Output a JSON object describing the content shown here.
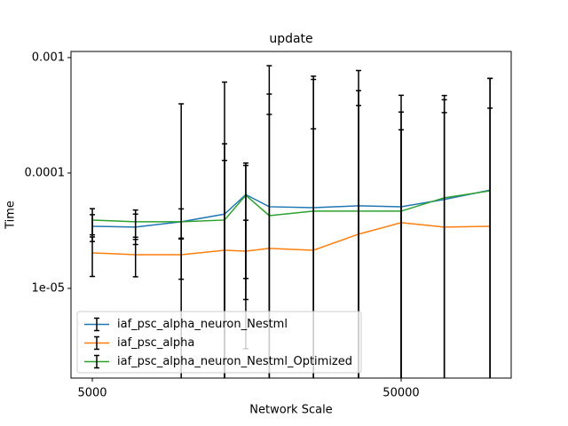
{
  "chart_data": {
    "type": "errorbar-line",
    "title": "update",
    "xlabel": "Network Scale",
    "ylabel": "Time",
    "xscale": "log",
    "yscale": "log",
    "x": [
      5000,
      6900,
      9700,
      13400,
      15700,
      18700,
      26000,
      36400,
      50000,
      69000,
      97000
    ],
    "xlim": [
      4265,
      113600
    ],
    "xticks": [
      5000,
      50000
    ],
    "ylim": [
      1.67e-06,
      0.00113
    ],
    "yticks": [
      {
        "value": 1e-05,
        "label": "1e-05"
      },
      {
        "value": 0.0001,
        "label": "0.0001"
      },
      {
        "value": 0.001,
        "label": "0.001"
      }
    ],
    "legend": "lower left",
    "error_color": "#000000",
    "series": [
      {
        "name": "iaf_psc_alpha_neuron_Nestml",
        "color": "#1f77b4",
        "values": [
          3.45e-05,
          3.4e-05,
          3.78e-05,
          4.4e-05,
          6.5e-05,
          5.1e-05,
          5e-05,
          5.2e-05,
          5.1e-05,
          5.9e-05,
          7.1e-05
        ],
        "errors": [
          9e-06,
          1e-05,
          0.00036,
          0.00057,
          5.7e-05,
          0.0008,
          0.00064,
          0.00072,
          0.00042,
          0.00041,
          0.00059
        ]
      },
      {
        "name": "iaf_psc_alpha",
        "color": "#ff7f0e",
        "values": [
          2.03e-05,
          1.96e-05,
          1.96e-05,
          2.14e-05,
          2.1e-05,
          2.22e-05,
          2.14e-05,
          2.95e-05,
          3.71e-05,
          3.4e-05,
          3.45e-05
        ],
        "errors": [
          7.6e-06,
          7e-06,
          7.6e-06,
          0.000107,
          1.8e-05,
          0.0003,
          0.00022,
          0.000355,
          0.0003,
          0.0003,
          0.00033
        ]
      },
      {
        "name": "iaf_psc_alpha_neuron_Nestml_Optimized",
        "color": "#2ca02c",
        "values": [
          3.91e-05,
          3.78e-05,
          3.78e-05,
          3.91e-05,
          6.42e-05,
          4.27e-05,
          4.67e-05,
          4.67e-05,
          4.67e-05,
          6.1e-05,
          7e-05
        ],
        "errors": [
          1e-05,
          1e-05,
          1.1e-05,
          0.00014,
          5.2e-05,
          0.00044,
          0.0006,
          0.00047,
          0.00019,
          0.00037,
          0.00059
        ]
      }
    ]
  }
}
